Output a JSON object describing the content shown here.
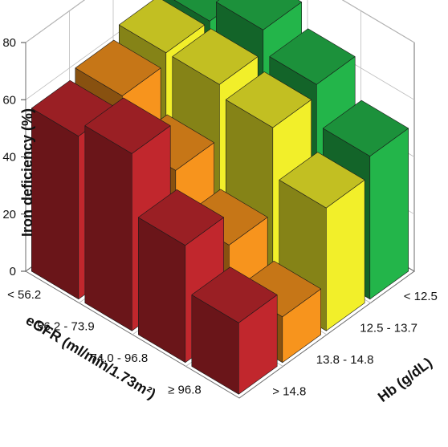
{
  "chart_data": {
    "type": "bar3d",
    "ylabel": "Iron deficiency (%)",
    "zlim": [
      0,
      80
    ],
    "zticks": [
      0,
      20,
      40,
      60,
      80
    ],
    "egfr_axis": {
      "title": "eGFR (ml/min/1.73m²)",
      "categories": [
        "< 56.2",
        "56.2 - 73.9",
        "74.0 - 96.8",
        "≥ 96.8"
      ]
    },
    "hb_axis": {
      "title": "Hb (g/dL)",
      "categories": [
        "< 12.5",
        "12.5 - 13.7",
        "13.8 - 14.8",
        "> 14.8"
      ]
    },
    "colors": {
      "< 12.5": "#23b54a",
      "12.5 - 13.7": "#f2ef2a",
      "13.8 - 14.8": "#f7941d",
      "> 14.8": "#c1272d"
    },
    "values": {
      "< 12.5": {
        "< 56.2": 64,
        "56.2 - 73.9": 72,
        "74.0 - 96.8": 64,
        "≥ 96.8": 50
      },
      "12.5 - 13.7": {
        "< 56.2": 64,
        "56.2 - 73.9": 64,
        "74.0 - 96.8": 60,
        "≥ 96.8": 43
      },
      "13.8 - 14.8": {
        "< 56.2": 60,
        "56.2 - 73.9": 45,
        "74.0 - 96.8": 30,
        "≥ 96.8": 16
      },
      "> 14.8": {
        "< 56.2": 57,
        "56.2 - 73.9": 62,
        "74.0 - 96.8": 41,
        "≥ 96.8": 25
      }
    },
    "grid": true
  }
}
